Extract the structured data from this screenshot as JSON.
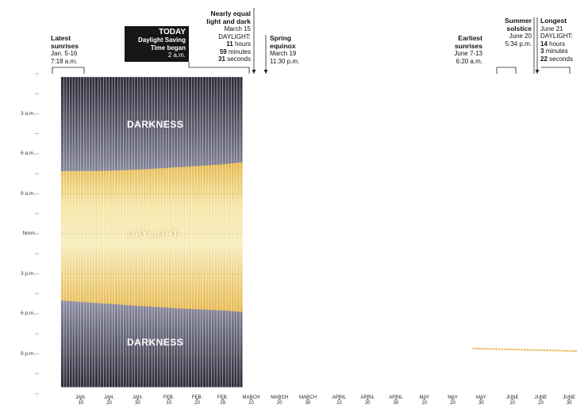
{
  "annotations": {
    "latest": {
      "title": "Latest\nsunrises",
      "l1": "Jan. 5-16",
      "l2": "7:18 a.m."
    },
    "today": {
      "title": "TODAY",
      "sub1": "Daylight Saving",
      "sub2": "Time began",
      "time": "2 a.m."
    },
    "equal": {
      "title1": "Nearly equal",
      "title2": "light and dark",
      "date": "March 15",
      "dl": "DAYLIGHT:",
      "h": "11",
      "hu": "hours",
      "m": "59",
      "mu": "minutes",
      "s": "31",
      "su": "seconds"
    },
    "equinox": {
      "title1": "Spring",
      "title2": "equinox",
      "l1": "March 19",
      "l2": "11:30 p.m."
    },
    "earliest": {
      "title1": "Earliest",
      "title2": "sunrises",
      "l1": "June 7-13",
      "l2": "6:20 a.m."
    },
    "solstice": {
      "title1": "Summer",
      "title2": "solstice",
      "l1": "June 20",
      "l2": "5:34 p.m."
    },
    "longest": {
      "title": "Longest",
      "date": "June 21",
      "dl": "DAYLIGHT:",
      "h": "14",
      "hu": "hours",
      "m": "3",
      "mu": "minutes",
      "s": "22",
      "su": "seconds"
    }
  },
  "band_labels": {
    "top": "DARKNESS",
    "mid": "DAYLIGHT",
    "bottom": "DARKNESS"
  },
  "colors": {
    "dark": "#3d3d4f",
    "darkLight": "#8c8ca2",
    "day": "#f3dc86",
    "dayEdge": "#e6b74c",
    "grid": "#ffffff"
  },
  "chart_data": {
    "type": "area",
    "title": "",
    "y_axis": {
      "labels": [
        "3 a.m.",
        "6 a.m.",
        "9 a.m.",
        "Noon",
        "3 p.m.",
        "6 p.m.",
        "9 p.m."
      ],
      "hours": [
        3,
        6,
        9,
        12,
        15,
        18,
        21
      ],
      "range_hours": [
        0,
        24
      ]
    },
    "x_axis": {
      "ticks": [
        {
          "m": "JAN.",
          "d": "10",
          "day": 10
        },
        {
          "m": "JAN.",
          "d": "20",
          "day": 20
        },
        {
          "m": "JAN.",
          "d": "30",
          "day": 30
        },
        {
          "m": "FEB.",
          "d": "10",
          "day": 41
        },
        {
          "m": "FEB.",
          "d": "20",
          "day": 51
        },
        {
          "m": "FEB.",
          "d": "29",
          "day": 60
        },
        {
          "m": "MARCH",
          "d": "10",
          "day": 70
        },
        {
          "m": "MARCH",
          "d": "20",
          "day": 80
        },
        {
          "m": "MARCH",
          "d": "30",
          "day": 90
        },
        {
          "m": "APRIL",
          "d": "10",
          "day": 101
        },
        {
          "m": "APRIL",
          "d": "20",
          "day": 111
        },
        {
          "m": "APRIL",
          "d": "30",
          "day": 121
        },
        {
          "m": "MAY",
          "d": "10",
          "day": 131
        },
        {
          "m": "MAY",
          "d": "20",
          "day": 141
        },
        {
          "m": "MAY",
          "d": "30",
          "day": 151
        },
        {
          "m": "JUNE",
          "d": "10",
          "day": 162
        },
        {
          "m": "JUNE",
          "d": "20",
          "day": 172
        },
        {
          "m": "JUNE",
          "d": "30",
          "day": 182
        }
      ],
      "range_days": [
        0,
        185
      ]
    },
    "shaded_days": [
      3,
      66
    ],
    "sunrise": {
      "days": [
        3,
        16,
        30,
        45,
        60,
        66
      ],
      "hours": [
        7.3,
        7.3,
        7.2,
        7.0,
        6.8,
        6.65
      ]
    },
    "sunset": {
      "days": [
        3,
        16,
        30,
        45,
        60,
        66
      ],
      "hours": [
        17.0,
        17.2,
        17.4,
        17.6,
        17.75,
        17.85
      ]
    },
    "forecast_sunset": {
      "days": [
        148,
        185
      ],
      "hours": [
        20.6,
        20.8
      ]
    }
  }
}
